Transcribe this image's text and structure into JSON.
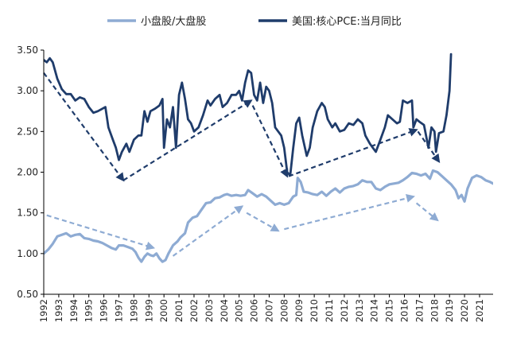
{
  "chart_data": {
    "type": "line",
    "title": "",
    "xlabel": "",
    "ylabel": "",
    "xlim": [
      1992,
      2021.9
    ],
    "ylim": [
      0.5,
      3.5
    ],
    "y_ticks": [
      "0.50",
      "1.00",
      "1.50",
      "2.00",
      "2.50",
      "3.00",
      "3.50"
    ],
    "x_ticks": [
      "1992",
      "1993",
      "1994",
      "1995",
      "1996",
      "1997",
      "1998",
      "1999",
      "2000",
      "2001",
      "2002",
      "2003",
      "2004",
      "2005",
      "2006",
      "2007",
      "2008",
      "2009",
      "2010",
      "2011",
      "2012",
      "2013",
      "2014",
      "2015",
      "2016",
      "2017",
      "2018",
      "2019",
      "2020",
      "2021"
    ],
    "grid": false,
    "legend_position": "top",
    "series": [
      {
        "name": "小盘股/大盘股",
        "color": "#8eabd3",
        "points": [
          [
            1992.0,
            1.0
          ],
          [
            1992.3,
            1.05
          ],
          [
            1992.6,
            1.12
          ],
          [
            1992.9,
            1.21
          ],
          [
            1993.2,
            1.23
          ],
          [
            1993.5,
            1.25
          ],
          [
            1993.8,
            1.21
          ],
          [
            1994.1,
            1.23
          ],
          [
            1994.4,
            1.24
          ],
          [
            1994.7,
            1.19
          ],
          [
            1995.0,
            1.18
          ],
          [
            1995.3,
            1.16
          ],
          [
            1995.6,
            1.15
          ],
          [
            1995.9,
            1.13
          ],
          [
            1996.2,
            1.1
          ],
          [
            1996.5,
            1.07
          ],
          [
            1996.8,
            1.05
          ],
          [
            1997.0,
            1.1
          ],
          [
            1997.3,
            1.1
          ],
          [
            1997.6,
            1.08
          ],
          [
            1997.9,
            1.06
          ],
          [
            1998.1,
            1.02
          ],
          [
            1998.3,
            0.95
          ],
          [
            1998.5,
            0.9
          ],
          [
            1998.7,
            0.96
          ],
          [
            1998.9,
            1.0
          ],
          [
            1999.1,
            0.98
          ],
          [
            1999.3,
            0.97
          ],
          [
            1999.5,
            1.0
          ],
          [
            1999.7,
            0.94
          ],
          [
            1999.9,
            0.9
          ],
          [
            2000.1,
            0.92
          ],
          [
            2000.3,
            1.0
          ],
          [
            2000.6,
            1.1
          ],
          [
            2000.9,
            1.15
          ],
          [
            2001.1,
            1.2
          ],
          [
            2001.4,
            1.25
          ],
          [
            2001.6,
            1.38
          ],
          [
            2001.9,
            1.44
          ],
          [
            2002.2,
            1.46
          ],
          [
            2002.5,
            1.54
          ],
          [
            2002.8,
            1.62
          ],
          [
            2003.1,
            1.63
          ],
          [
            2003.4,
            1.68
          ],
          [
            2003.7,
            1.69
          ],
          [
            2004.0,
            1.72
          ],
          [
            2004.2,
            1.73
          ],
          [
            2004.5,
            1.71
          ],
          [
            2004.8,
            1.72
          ],
          [
            2005.1,
            1.71
          ],
          [
            2005.4,
            1.72
          ],
          [
            2005.6,
            1.78
          ],
          [
            2005.9,
            1.74
          ],
          [
            2006.2,
            1.7
          ],
          [
            2006.5,
            1.73
          ],
          [
            2006.8,
            1.7
          ],
          [
            2007.1,
            1.65
          ],
          [
            2007.4,
            1.6
          ],
          [
            2007.7,
            1.62
          ],
          [
            2008.0,
            1.6
          ],
          [
            2008.3,
            1.62
          ],
          [
            2008.6,
            1.7
          ],
          [
            2008.8,
            1.72
          ],
          [
            2008.9,
            1.93
          ],
          [
            2009.1,
            1.88
          ],
          [
            2009.3,
            1.76
          ],
          [
            2009.6,
            1.75
          ],
          [
            2009.9,
            1.73
          ],
          [
            2010.2,
            1.72
          ],
          [
            2010.5,
            1.76
          ],
          [
            2010.8,
            1.71
          ],
          [
            2011.1,
            1.76
          ],
          [
            2011.4,
            1.8
          ],
          [
            2011.7,
            1.75
          ],
          [
            2012.0,
            1.8
          ],
          [
            2012.3,
            1.82
          ],
          [
            2012.6,
            1.83
          ],
          [
            2012.9,
            1.85
          ],
          [
            2013.2,
            1.9
          ],
          [
            2013.5,
            1.88
          ],
          [
            2013.8,
            1.88
          ],
          [
            2014.1,
            1.8
          ],
          [
            2014.4,
            1.78
          ],
          [
            2014.7,
            1.82
          ],
          [
            2015.0,
            1.85
          ],
          [
            2015.3,
            1.86
          ],
          [
            2015.6,
            1.87
          ],
          [
            2015.9,
            1.9
          ],
          [
            2016.2,
            1.94
          ],
          [
            2016.5,
            1.99
          ],
          [
            2016.8,
            1.98
          ],
          [
            2017.1,
            1.96
          ],
          [
            2017.4,
            1.98
          ],
          [
            2017.7,
            1.92
          ],
          [
            2017.9,
            2.02
          ],
          [
            2018.2,
            2.0
          ],
          [
            2018.5,
            1.95
          ],
          [
            2018.8,
            1.9
          ],
          [
            2019.1,
            1.85
          ],
          [
            2019.4,
            1.78
          ],
          [
            2019.6,
            1.68
          ],
          [
            2019.8,
            1.72
          ],
          [
            2020.0,
            1.64
          ],
          [
            2020.2,
            1.8
          ],
          [
            2020.5,
            1.93
          ],
          [
            2020.8,
            1.96
          ],
          [
            2021.1,
            1.94
          ],
          [
            2021.4,
            1.9
          ],
          [
            2021.7,
            1.88
          ],
          [
            2021.9,
            1.86
          ]
        ]
      },
      {
        "name": "美国:核心PCE:当月同比",
        "color": "#1f3c6b",
        "points": [
          [
            1992.0,
            3.38
          ],
          [
            1992.2,
            3.35
          ],
          [
            1992.4,
            3.4
          ],
          [
            1992.6,
            3.35
          ],
          [
            1992.9,
            3.15
          ],
          [
            1993.2,
            3.02
          ],
          [
            1993.5,
            2.96
          ],
          [
            1993.8,
            2.96
          ],
          [
            1994.1,
            2.88
          ],
          [
            1994.4,
            2.92
          ],
          [
            1994.7,
            2.9
          ],
          [
            1995.0,
            2.8
          ],
          [
            1995.3,
            2.73
          ],
          [
            1995.6,
            2.75
          ],
          [
            1995.9,
            2.78
          ],
          [
            1996.1,
            2.8
          ],
          [
            1996.3,
            2.55
          ],
          [
            1996.6,
            2.4
          ],
          [
            1996.8,
            2.3
          ],
          [
            1997.0,
            2.15
          ],
          [
            1997.2,
            2.25
          ],
          [
            1997.5,
            2.35
          ],
          [
            1997.7,
            2.25
          ],
          [
            1998.0,
            2.4
          ],
          [
            1998.3,
            2.45
          ],
          [
            1998.5,
            2.45
          ],
          [
            1998.7,
            2.75
          ],
          [
            1998.9,
            2.62
          ],
          [
            1999.1,
            2.75
          ],
          [
            1999.4,
            2.78
          ],
          [
            1999.7,
            2.82
          ],
          [
            1999.9,
            2.9
          ],
          [
            2000.0,
            2.3
          ],
          [
            2000.2,
            2.65
          ],
          [
            2000.4,
            2.55
          ],
          [
            2000.6,
            2.8
          ],
          [
            2000.8,
            2.3
          ],
          [
            2001.0,
            2.95
          ],
          [
            2001.2,
            3.1
          ],
          [
            2001.4,
            2.9
          ],
          [
            2001.6,
            2.65
          ],
          [
            2001.8,
            2.6
          ],
          [
            2002.0,
            2.5
          ],
          [
            2002.3,
            2.55
          ],
          [
            2002.6,
            2.7
          ],
          [
            2002.9,
            2.88
          ],
          [
            2003.1,
            2.82
          ],
          [
            2003.4,
            2.9
          ],
          [
            2003.7,
            2.95
          ],
          [
            2003.9,
            2.8
          ],
          [
            2004.2,
            2.85
          ],
          [
            2004.5,
            2.95
          ],
          [
            2004.8,
            2.95
          ],
          [
            2005.0,
            3.0
          ],
          [
            2005.2,
            2.88
          ],
          [
            2005.4,
            3.1
          ],
          [
            2005.6,
            3.25
          ],
          [
            2005.8,
            3.22
          ],
          [
            2006.0,
            2.95
          ],
          [
            2006.2,
            2.88
          ],
          [
            2006.4,
            3.1
          ],
          [
            2006.6,
            2.85
          ],
          [
            2006.8,
            3.05
          ],
          [
            2007.0,
            3.0
          ],
          [
            2007.2,
            2.85
          ],
          [
            2007.4,
            2.55
          ],
          [
            2007.6,
            2.5
          ],
          [
            2007.8,
            2.45
          ],
          [
            2008.0,
            2.3
          ],
          [
            2008.2,
            2.0
          ],
          [
            2008.4,
            1.96
          ],
          [
            2008.6,
            2.3
          ],
          [
            2008.8,
            2.6
          ],
          [
            2009.0,
            2.67
          ],
          [
            2009.2,
            2.45
          ],
          [
            2009.5,
            2.2
          ],
          [
            2009.7,
            2.3
          ],
          [
            2009.9,
            2.55
          ],
          [
            2010.2,
            2.75
          ],
          [
            2010.5,
            2.85
          ],
          [
            2010.7,
            2.8
          ],
          [
            2010.9,
            2.65
          ],
          [
            2011.2,
            2.55
          ],
          [
            2011.4,
            2.6
          ],
          [
            2011.7,
            2.5
          ],
          [
            2012.0,
            2.52
          ],
          [
            2012.3,
            2.6
          ],
          [
            2012.6,
            2.58
          ],
          [
            2012.9,
            2.65
          ],
          [
            2013.2,
            2.6
          ],
          [
            2013.4,
            2.45
          ],
          [
            2013.7,
            2.35
          ],
          [
            2013.9,
            2.3
          ],
          [
            2014.1,
            2.25
          ],
          [
            2014.4,
            2.4
          ],
          [
            2014.7,
            2.55
          ],
          [
            2014.9,
            2.7
          ],
          [
            2015.2,
            2.65
          ],
          [
            2015.5,
            2.6
          ],
          [
            2015.7,
            2.62
          ],
          [
            2015.9,
            2.88
          ],
          [
            2016.2,
            2.85
          ],
          [
            2016.5,
            2.88
          ],
          [
            2016.6,
            2.55
          ],
          [
            2016.8,
            2.65
          ],
          [
            2017.0,
            2.62
          ],
          [
            2017.3,
            2.58
          ],
          [
            2017.6,
            2.3
          ],
          [
            2017.8,
            2.55
          ],
          [
            2018.0,
            2.5
          ],
          [
            2018.1,
            2.25
          ],
          [
            2018.3,
            2.48
          ],
          [
            2018.6,
            2.5
          ],
          [
            2018.8,
            2.7
          ],
          [
            2019.0,
            3.0
          ],
          [
            2019.1,
            3.45
          ]
        ]
      }
    ],
    "annotations": [
      {
        "type": "dashed-arrow",
        "color": "#1f3c6b",
        "from": [
          1992.0,
          3.22
        ],
        "to": [
          1997.3,
          1.9
        ]
      },
      {
        "type": "dashed-arrow",
        "color": "#1f3c6b",
        "from": [
          1997.3,
          1.9
        ],
        "to": [
          2005.8,
          2.88
        ]
      },
      {
        "type": "dashed-arrow",
        "color": "#1f3c6b",
        "from": [
          2005.9,
          2.82
        ],
        "to": [
          2008.2,
          1.95
        ]
      },
      {
        "type": "dashed-arrow",
        "color": "#1f3c6b",
        "from": [
          2008.3,
          1.95
        ],
        "to": [
          2016.8,
          2.52
        ]
      },
      {
        "type": "dashed-arrow",
        "color": "#1f3c6b",
        "from": [
          2016.9,
          2.5
        ],
        "to": [
          2018.3,
          2.13
        ]
      },
      {
        "type": "dashed-arrow",
        "color": "#8eabd3",
        "from": [
          1992.2,
          1.47
        ],
        "to": [
          1999.3,
          1.07
        ]
      },
      {
        "type": "dashed-arrow",
        "color": "#8eabd3",
        "from": [
          2000.6,
          0.97
        ],
        "to": [
          2005.2,
          1.58
        ]
      },
      {
        "type": "dashed-arrow",
        "color": "#8eabd3",
        "from": [
          2005.5,
          1.5
        ],
        "to": [
          2007.6,
          1.28
        ]
      },
      {
        "type": "dashed-arrow",
        "color": "#8eabd3",
        "from": [
          2008.0,
          1.3
        ],
        "to": [
          2016.6,
          1.7
        ]
      },
      {
        "type": "dashed-arrow",
        "color": "#8eabd3",
        "from": [
          2016.8,
          1.62
        ],
        "to": [
          2018.2,
          1.41
        ]
      }
    ]
  }
}
